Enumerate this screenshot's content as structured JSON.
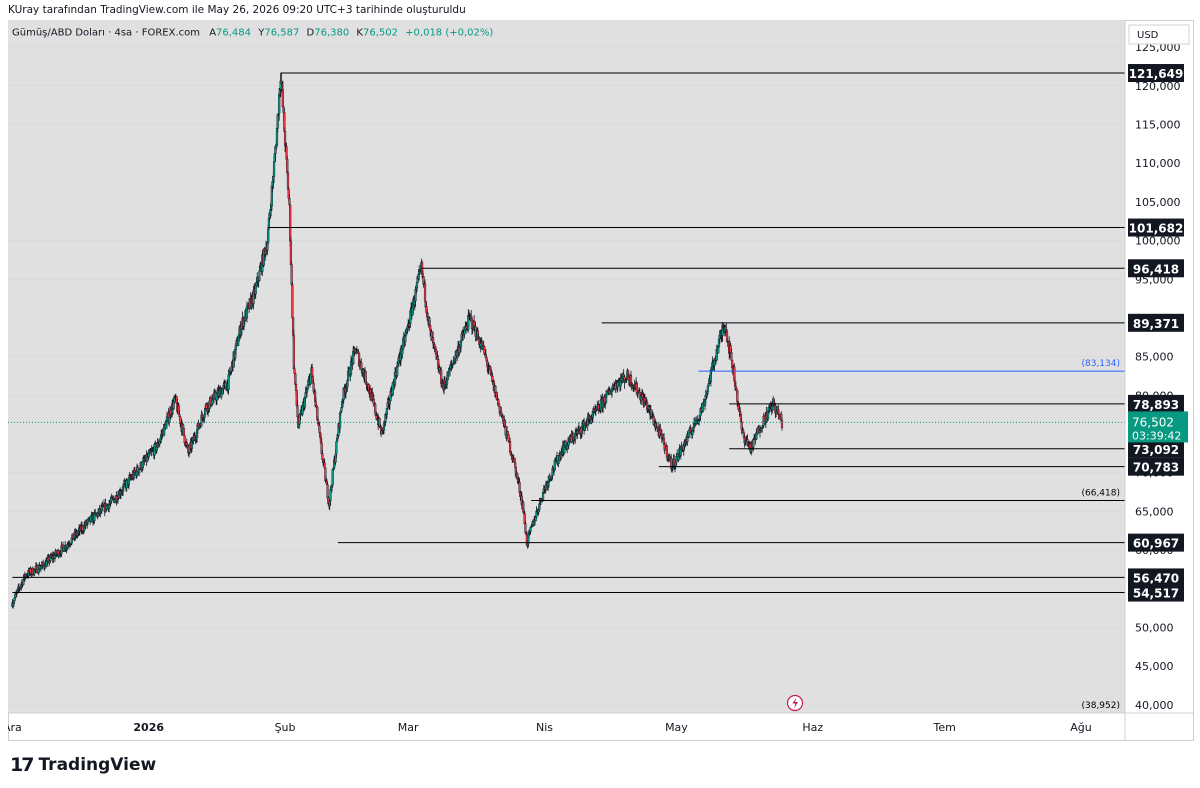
{
  "header": {
    "attribution": "KUray tarafından TradingView.com ile May 26, 2026 09:20 UTC+3 tarihinde oluşturuldu"
  },
  "legend": {
    "symbol": "Gümüş/ABD Doları · 4sa · FOREX.com",
    "open_label": "A",
    "open": "76,484",
    "high_label": "Y",
    "high": "76,587",
    "low_label": "D",
    "low": "76,380",
    "close_label": "K",
    "close": "76,502",
    "change": "+0,018 (+0,02%)"
  },
  "footer": {
    "brand": "TradingView"
  },
  "colors": {
    "bg": "#e0e0e0",
    "up": "#089981",
    "down": "#f23645",
    "candle": "#131722",
    "level_line": "#000000",
    "blue_line": "#2962ff",
    "price_badge": "#089981"
  },
  "chart_data": {
    "type": "candlestick",
    "currency": "USD",
    "ylim": [
      38952,
      128500
    ],
    "y_tick_labels": [
      "125,000",
      "120,000",
      "115,000",
      "110,000",
      "105,000",
      "100,000",
      "95,000",
      "90,000",
      "85,000",
      "80,000",
      "75,000",
      "70,000",
      "65,000",
      "60,000",
      "55,000",
      "50,000",
      "45,000",
      "40,000"
    ],
    "y_tick_values": [
      125000,
      120000,
      115000,
      110000,
      105000,
      100000,
      95000,
      90000,
      85000,
      80000,
      75000,
      70000,
      65000,
      60000,
      55000,
      50000,
      45000,
      40000
    ],
    "x_tick_labels": [
      "Ara",
      "2026",
      "Şub",
      "Mar",
      "Nis",
      "May",
      "Haz",
      "Tem",
      "Ağu"
    ],
    "x_tick_dates": [
      "2025-12-01",
      "2026-01-01",
      "2026-02-01",
      "2026-03-01",
      "2026-04-01",
      "2026-05-01",
      "2026-06-01",
      "2026-07-01",
      "2026-08-01"
    ],
    "price_path": [
      [
        "2025-12-01",
        53200
      ],
      [
        "2025-12-04",
        56800
      ],
      [
        "2025-12-08",
        58000
      ],
      [
        "2025-12-13",
        60500
      ],
      [
        "2025-12-18",
        63500
      ],
      [
        "2025-12-24",
        66500
      ],
      [
        "2025-12-29",
        70000
      ],
      [
        "2026-01-03",
        73500
      ],
      [
        "2026-01-07",
        79500
      ],
      [
        "2026-01-10",
        72500
      ],
      [
        "2026-01-14",
        78500
      ],
      [
        "2026-01-19",
        81500
      ],
      [
        "2026-01-22",
        89000
      ],
      [
        "2026-01-25",
        93000
      ],
      [
        "2026-01-28",
        100000
      ],
      [
        "2026-01-30",
        113000
      ],
      [
        "2026-01-31",
        121649
      ],
      [
        "2026-02-02",
        104000
      ],
      [
        "2026-02-03",
        84000
      ],
      [
        "2026-02-04",
        76000
      ],
      [
        "2026-02-07",
        83000
      ],
      [
        "2026-02-09",
        74000
      ],
      [
        "2026-02-11",
        66000
      ],
      [
        "2026-02-14",
        79500
      ],
      [
        "2026-02-17",
        86000
      ],
      [
        "2026-02-20",
        81000
      ],
      [
        "2026-02-23",
        75000
      ],
      [
        "2026-02-26",
        82500
      ],
      [
        "2026-03-01",
        89000
      ],
      [
        "2026-03-04",
        96418
      ],
      [
        "2026-03-06",
        88000
      ],
      [
        "2026-03-09",
        81000
      ],
      [
        "2026-03-12",
        85500
      ],
      [
        "2026-03-15",
        90000
      ],
      [
        "2026-03-18",
        86000
      ],
      [
        "2026-03-21",
        80000
      ],
      [
        "2026-03-25",
        71500
      ],
      [
        "2026-03-27",
        66000
      ],
      [
        "2026-03-28",
        60967
      ],
      [
        "2026-04-01",
        68000
      ],
      [
        "2026-04-05",
        73000
      ],
      [
        "2026-04-09",
        75500
      ],
      [
        "2026-04-13",
        78000
      ],
      [
        "2026-04-17",
        81500
      ],
      [
        "2026-04-20",
        82500
      ],
      [
        "2026-04-24",
        79000
      ],
      [
        "2026-04-28",
        74000
      ],
      [
        "2026-04-30",
        70783
      ],
      [
        "2026-05-04",
        75000
      ],
      [
        "2026-05-07",
        78500
      ],
      [
        "2026-05-09",
        83134
      ],
      [
        "2026-05-11",
        87500
      ],
      [
        "2026-05-12",
        89371
      ],
      [
        "2026-05-14",
        83000
      ],
      [
        "2026-05-16",
        75000
      ],
      [
        "2026-05-18",
        73092
      ],
      [
        "2026-05-20",
        76000
      ],
      [
        "2026-05-23",
        78893
      ],
      [
        "2026-05-25",
        76502
      ]
    ],
    "levels": [
      {
        "label": "121,649",
        "value": 121649,
        "from": "2026-01-31"
      },
      {
        "label": "101,682",
        "value": 101682,
        "from": "2026-01-28"
      },
      {
        "label": "96,418",
        "value": 96418,
        "from": "2026-03-04"
      },
      {
        "label": "89,371",
        "value": 89371,
        "from": "2026-04-14"
      },
      {
        "label": "78,893",
        "value": 78893,
        "from": "2026-05-13"
      },
      {
        "label": "73,092",
        "value": 73092,
        "from": "2026-05-13"
      },
      {
        "label": "70,783",
        "value": 70783,
        "from": "2026-04-27"
      },
      {
        "label": "60,967",
        "value": 60967,
        "from": "2026-02-13"
      },
      {
        "label": "56,470",
        "value": 56470,
        "from": "2025-12-01"
      },
      {
        "label": "54,517",
        "value": 54517,
        "from": "2025-12-01"
      }
    ],
    "bracket_levels": [
      {
        "label": "(83,134)",
        "value": 83134,
        "from": "2026-05-06",
        "color": "#2962ff"
      },
      {
        "label": "(66,418)",
        "value": 66418,
        "from": "2026-03-29",
        "color": "#000000"
      },
      {
        "label": "(38,952)",
        "value": 38952,
        "from": null,
        "color": "#000000"
      }
    ],
    "current_price": {
      "value": 76502,
      "label": "76,502",
      "countdown": "03:39:42"
    }
  }
}
